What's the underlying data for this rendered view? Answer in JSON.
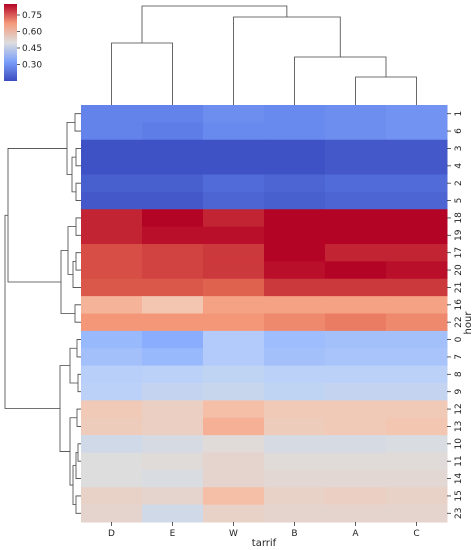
{
  "chart_data": {
    "type": "heatmap",
    "xlabel": "tarrif",
    "ylabel": "hour",
    "columns": [
      "D",
      "E",
      "W",
      "B",
      "A",
      "C"
    ],
    "rows": [
      "1",
      "6",
      "3",
      "4",
      "2",
      "5",
      "18",
      "19",
      "17",
      "20",
      "21",
      "16",
      "22",
      "0",
      "7",
      "8",
      "9",
      "12",
      "13",
      "10",
      "11",
      "14",
      "15",
      "23"
    ],
    "values": [
      [
        0.24,
        0.24,
        0.26,
        0.25,
        0.26,
        0.27
      ],
      [
        0.24,
        0.23,
        0.25,
        0.25,
        0.26,
        0.27
      ],
      [
        0.16,
        0.16,
        0.16,
        0.16,
        0.17,
        0.17
      ],
      [
        0.16,
        0.16,
        0.16,
        0.16,
        0.17,
        0.17
      ],
      [
        0.18,
        0.18,
        0.2,
        0.19,
        0.2,
        0.2
      ],
      [
        0.17,
        0.17,
        0.19,
        0.18,
        0.19,
        0.19
      ],
      [
        0.82,
        0.92,
        0.82,
        0.92,
        0.9,
        0.89
      ],
      [
        0.82,
        0.84,
        0.84,
        0.9,
        0.9,
        0.91
      ],
      [
        0.78,
        0.79,
        0.8,
        0.86,
        0.82,
        0.82
      ],
      [
        0.78,
        0.79,
        0.8,
        0.84,
        0.87,
        0.84
      ],
      [
        0.77,
        0.77,
        0.76,
        0.8,
        0.8,
        0.8
      ],
      [
        0.62,
        0.58,
        0.66,
        0.66,
        0.66,
        0.66
      ],
      [
        0.68,
        0.68,
        0.68,
        0.7,
        0.72,
        0.7
      ],
      [
        0.35,
        0.32,
        0.4,
        0.36,
        0.37,
        0.37
      ],
      [
        0.37,
        0.35,
        0.4,
        0.37,
        0.38,
        0.38
      ],
      [
        0.41,
        0.42,
        0.43,
        0.42,
        0.42,
        0.42
      ],
      [
        0.42,
        0.44,
        0.45,
        0.43,
        0.44,
        0.44
      ],
      [
        0.57,
        0.55,
        0.6,
        0.57,
        0.57,
        0.57
      ],
      [
        0.56,
        0.55,
        0.63,
        0.56,
        0.57,
        0.58
      ],
      [
        0.47,
        0.48,
        0.51,
        0.48,
        0.48,
        0.49
      ],
      [
        0.5,
        0.51,
        0.53,
        0.51,
        0.51,
        0.51
      ],
      [
        0.5,
        0.49,
        0.53,
        0.52,
        0.52,
        0.52
      ],
      [
        0.54,
        0.53,
        0.6,
        0.54,
        0.55,
        0.54
      ],
      [
        0.53,
        0.47,
        0.54,
        0.53,
        0.53,
        0.53
      ]
    ],
    "vmin": 0.15,
    "vmax": 0.85,
    "colormap": "coolwarm",
    "colorbar": {
      "ticks": [
        0.3,
        0.45,
        0.6,
        0.75
      ],
      "tick_labels": [
        "0.30",
        "0.45",
        "0.60",
        "0.75"
      ]
    }
  }
}
